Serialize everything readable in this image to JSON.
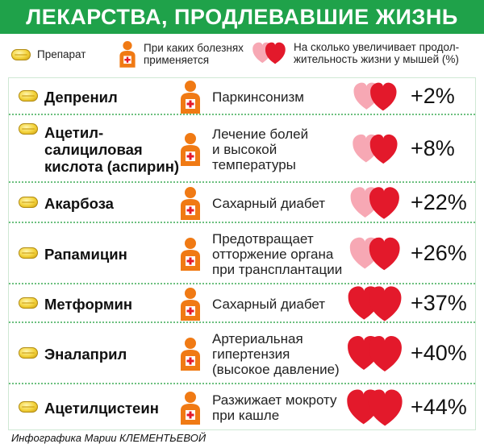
{
  "title": "ЛЕКАРСТВА, ПРОДЛЕВАВШИЕ ЖИЗНЬ",
  "legend": {
    "drug_label": "Препарат",
    "disease_label_line1": "При каких болезнях",
    "disease_label_line2": "применяется",
    "lifespan_label_line1": "На сколько увеличивает продол-",
    "lifespan_label_line2": "жительность жизни у мышей (%)",
    "icons": [
      "pill-icon",
      "doctor-icon",
      "hearts-icon"
    ]
  },
  "colors": {
    "title_bar": "#1fa24a",
    "heart_light": "#f7a8b4",
    "heart_dark": "#e3192b",
    "doctor_orange": "#f07a14",
    "pill_yellow": "#f3d23a"
  },
  "rows": [
    {
      "drug": [
        "Депренил"
      ],
      "disease": [
        "Паркинсонизм"
      ],
      "value": "+2%",
      "effect": 2
    },
    {
      "drug": [
        "Ацетил-",
        "салициловая",
        "кислота (аспирин)"
      ],
      "disease": [
        "Лечение болей",
        "и высокой",
        "температуры"
      ],
      "value": "+8%",
      "effect": 8
    },
    {
      "drug": [
        "Акарбоза"
      ],
      "disease": [
        "Сахарный диабет"
      ],
      "value": "+22%",
      "effect": 22
    },
    {
      "drug": [
        "Рапамицин"
      ],
      "disease": [
        "Предотвращает",
        "отторжение органа",
        "при трансплантации"
      ],
      "value": "+26%",
      "effect": 26
    },
    {
      "drug": [
        "Метформин"
      ],
      "disease": [
        "Сахарный диабет"
      ],
      "value": "+37%",
      "effect": 37
    },
    {
      "drug": [
        "Эналаприл"
      ],
      "disease": [
        "Артериальная",
        "гипертензия",
        "(высокое давление)"
      ],
      "value": "+40%",
      "effect": 40
    },
    {
      "drug": [
        "Ацетилцистеин"
      ],
      "disease": [
        "Разжижает мокроту",
        "при кашле"
      ],
      "value": "+44%",
      "effect": 44
    }
  ],
  "footer": "Инфографика Марии КЛЕМЕНТЬЕВОЙ"
}
